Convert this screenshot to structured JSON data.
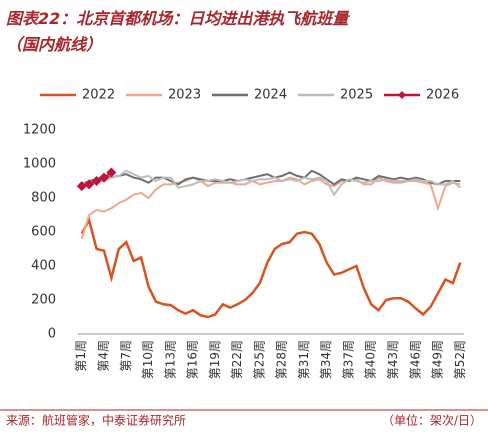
{
  "chart_data": {
    "type": "line",
    "title": "图表22：北京首都机场：日均进出港执飞航班量",
    "subtitle": "（国内航线）",
    "source": "来源：航班管家，中泰证券研究所",
    "unit": "（单位：架次/日）",
    "categories": [
      "第1周",
      null,
      null,
      "第4周",
      null,
      null,
      "第7周",
      null,
      null,
      "第10周",
      null,
      null,
      "第13周",
      null,
      null,
      "第16周",
      null,
      null,
      "第19周",
      null,
      null,
      "第22周",
      null,
      null,
      "第25周",
      null,
      null,
      "第28周",
      null,
      null,
      "第31周",
      null,
      null,
      "第34周",
      null,
      null,
      "第37周",
      null,
      null,
      "第40周",
      null,
      null,
      "第43周",
      null,
      null,
      "第46周",
      null,
      null,
      "第49周",
      null,
      null,
      "第52周"
    ],
    "ylim": [
      0,
      1200
    ],
    "yticks": [
      0,
      200,
      400,
      600,
      800,
      1000,
      1200
    ],
    "grid": false,
    "legend": "top",
    "series": [
      {
        "name": "2022",
        "color": "#d9531e",
        "values": [
          590,
          670,
          500,
          490,
          330,
          500,
          540,
          430,
          450,
          280,
          190,
          175,
          170,
          140,
          120,
          140,
          110,
          100,
          115,
          175,
          155,
          175,
          200,
          240,
          300,
          420,
          500,
          530,
          540,
          590,
          600,
          590,
          530,
          420,
          350,
          360,
          380,
          400,
          270,
          175,
          140,
          200,
          210,
          210,
          190,
          150,
          115,
          160,
          240,
          320,
          300,
          420
        ]
      },
      {
        "name": "2023",
        "color": "#f2a68c",
        "values": [
          560,
          700,
          730,
          720,
          740,
          770,
          790,
          820,
          830,
          800,
          850,
          880,
          880,
          890,
          900,
          920,
          900,
          870,
          890,
          890,
          890,
          880,
          880,
          900,
          880,
          890,
          900,
          900,
          920,
          910,
          880,
          900,
          910,
          880,
          870,
          900,
          900,
          910,
          880,
          880,
          920,
          900,
          890,
          890,
          900,
          900,
          890,
          880,
          740,
          870,
          890,
          880
        ]
      },
      {
        "name": "2024",
        "color": "#6e6e6e",
        "values": [
          880,
          900,
          910,
          930,
          920,
          930,
          940,
          920,
          910,
          890,
          920,
          920,
          900,
          880,
          910,
          920,
          910,
          900,
          900,
          900,
          910,
          900,
          910,
          920,
          930,
          940,
          920,
          930,
          950,
          930,
          920,
          960,
          940,
          910,
          880,
          910,
          900,
          920,
          910,
          900,
          930,
          920,
          910,
          920,
          910,
          920,
          910,
          890,
          880,
          900,
          900,
          900
        ]
      },
      {
        "name": "2025",
        "color": "#bdbdbd",
        "values": [
          880,
          890,
          900,
          900,
          920,
          930,
          960,
          940,
          920,
          930,
          900,
          920,
          920,
          860,
          870,
          880,
          900,
          900,
          910,
          900,
          890,
          900,
          910,
          900,
          910,
          910,
          920,
          900,
          910,
          900,
          920,
          910,
          920,
          900,
          820,
          880,
          910,
          900,
          890,
          900,
          900,
          910,
          900,
          900,
          900,
          910,
          900,
          900,
          880,
          880,
          900,
          860
        ]
      },
      {
        "name": "2026",
        "color": "#c0143c",
        "values": [
          870,
          880,
          900,
          920,
          950,
          null,
          null,
          null,
          null,
          null,
          null,
          null,
          null,
          null,
          null,
          null,
          null,
          null,
          null,
          null,
          null,
          null,
          null,
          null,
          null,
          null,
          null,
          null,
          null,
          null,
          null,
          null,
          null,
          null,
          null,
          null,
          null,
          null,
          null,
          null,
          null,
          null,
          null,
          null,
          null,
          null,
          null,
          null,
          null,
          null,
          null,
          null
        ]
      }
    ]
  }
}
